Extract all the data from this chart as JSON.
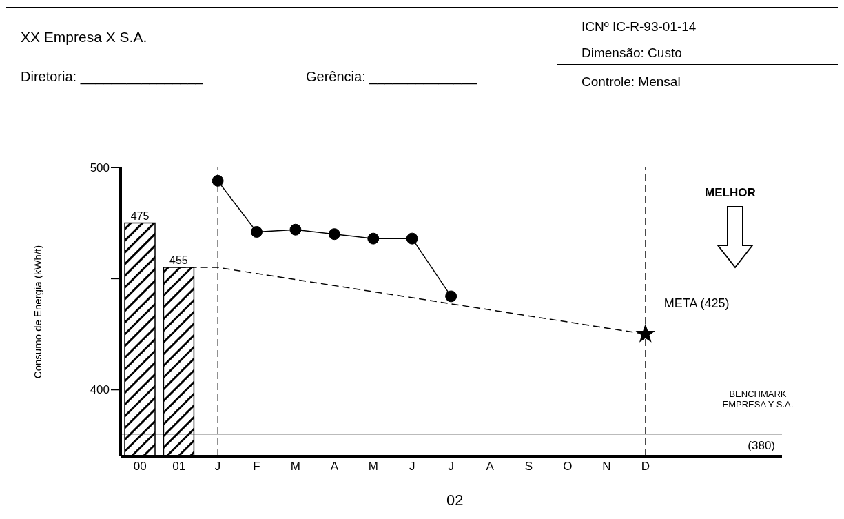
{
  "chart_data": {
    "type": "bar",
    "title": "XX Empresa X S.A.",
    "ylabel": "Consumo de Energia (kWh/t)",
    "xlabel": "02",
    "categories": [
      "00",
      "01",
      "J",
      "F",
      "M",
      "A",
      "M",
      "J",
      "J",
      "A",
      "S",
      "O",
      "N",
      "D"
    ],
    "series": [
      {
        "color": "#000000",
        "values": [
          475,
          455,
          null,
          null,
          null,
          null,
          null,
          null,
          null,
          null,
          null,
          null,
          null,
          null
        ],
        "value_labels": [
          "475",
          "455",
          null,
          null,
          null,
          null,
          null,
          null,
          null,
          null,
          null,
          null,
          null,
          null
        ]
      },
      {
        "type": "line",
        "color": "#000000",
        "marker": "circle",
        "values": [
          null,
          null,
          494,
          471,
          472,
          470,
          468,
          468,
          442,
          null,
          null,
          null,
          null,
          null
        ]
      },
      {
        "type": "line",
        "color": "#000000",
        "line_style": "dashed",
        "marker": "none",
        "values": [
          null,
          455,
          455,
          null,
          null,
          null,
          null,
          null,
          null,
          null,
          null,
          null,
          null,
          425
        ]
      },
      {
        "type": "scatter",
        "color": "#000000",
        "marker": "star",
        "values": [
          null,
          null,
          null,
          null,
          null,
          null,
          null,
          null,
          null,
          null,
          null,
          null,
          null,
          425
        ]
      }
    ],
    "ylim": [
      370,
      500
    ],
    "yticks": [
      400,
      {
        "value": 450,
        "label": null
      },
      500
    ],
    "ref_lines": [
      {
        "axis": "y",
        "value": 380,
        "label": "(380)"
      },
      {
        "axis": "x",
        "value": "J",
        "line_style": "dashed"
      },
      {
        "axis": "x",
        "value": "D",
        "line_style": "dashed"
      }
    ],
    "annotations": [
      "Diretoria: ________________",
      "Gerência: ______________",
      "ICNº IC-R-93-01-14",
      "Dimensão: Custo",
      "Controle: Mensal",
      "MELHOR",
      {
        "text": "META (425)",
        "x": "D",
        "y": 425
      },
      "BENCHMARK EMPRESA Y S.A."
    ]
  }
}
